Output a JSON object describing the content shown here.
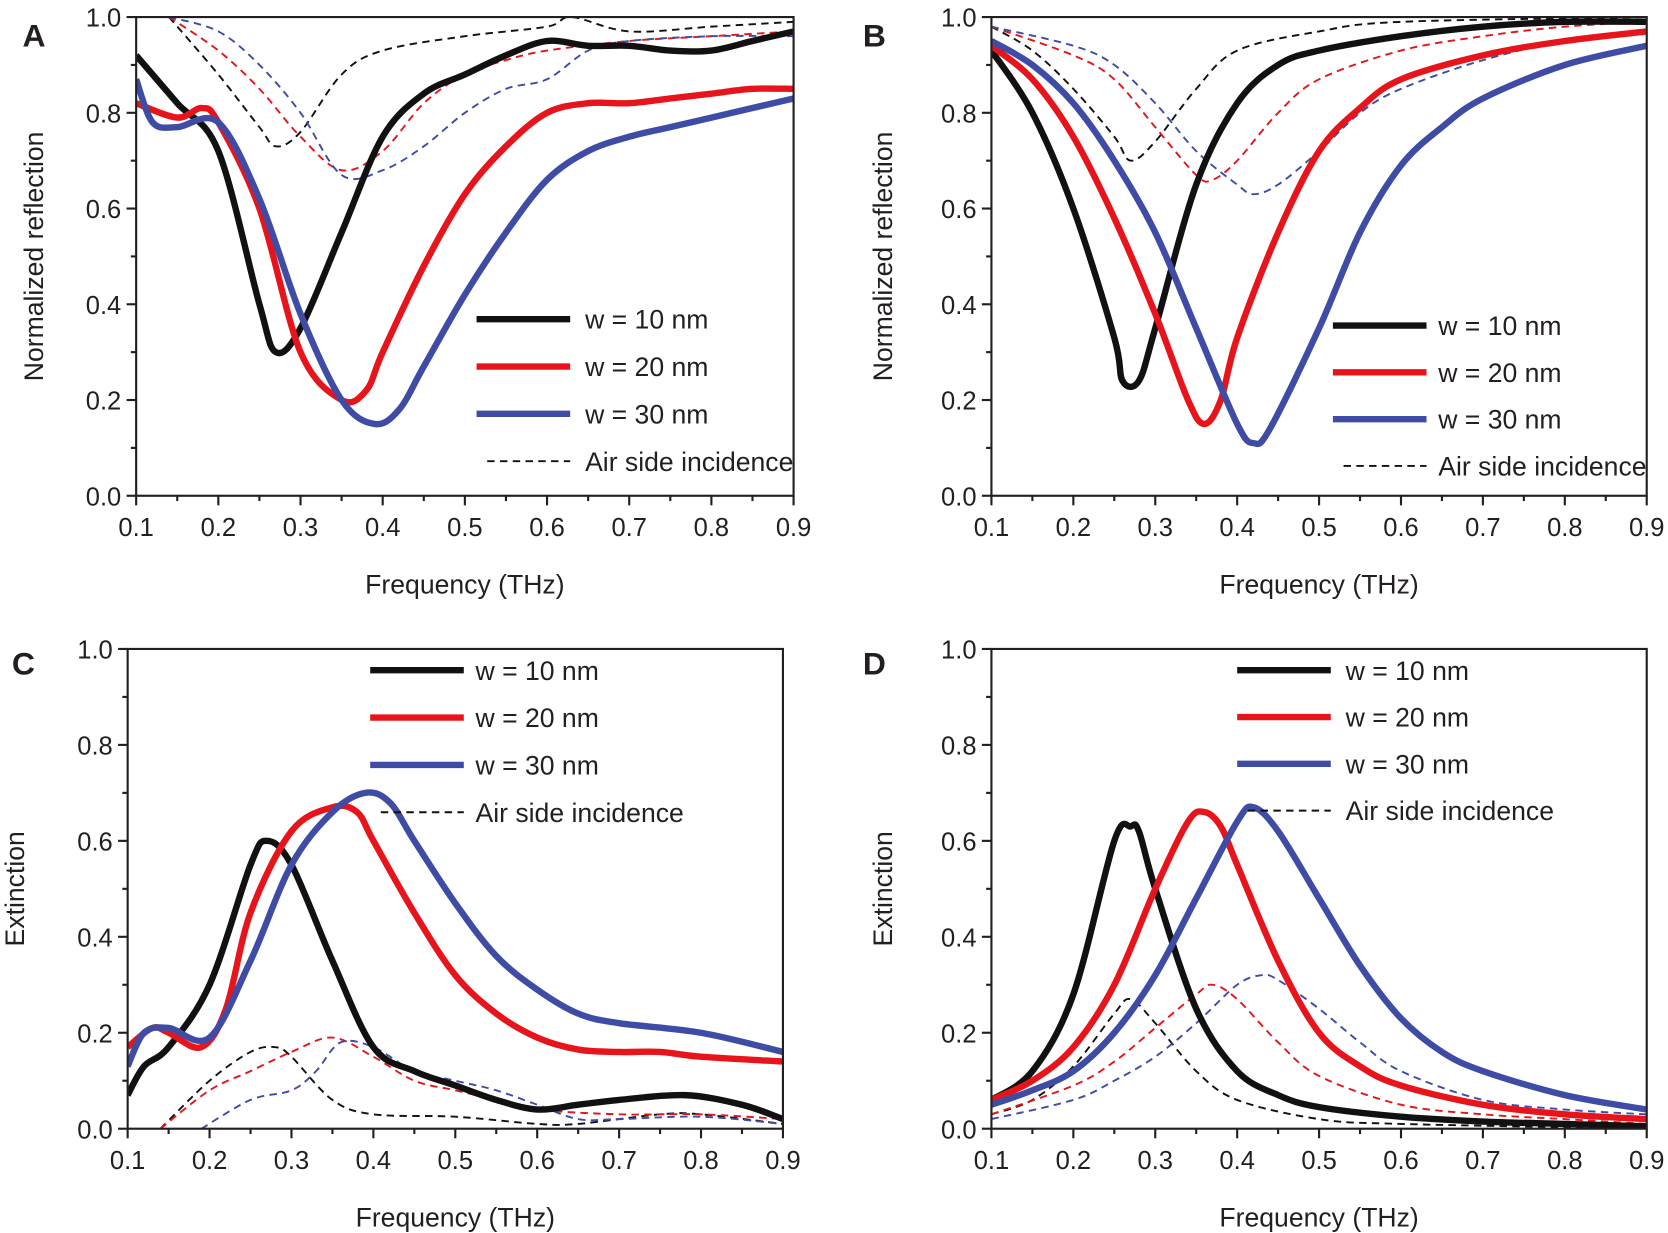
{
  "colors": {
    "w10": "#111111",
    "w20": "#e8141c",
    "w30": "#3f4ca5"
  },
  "chart_data": [
    {
      "panel": "A",
      "type": "line",
      "xlabel": "Frequency (THz)",
      "ylabel": "Normalized reflection",
      "xlim": [
        0.1,
        0.9
      ],
      "ylim": [
        0.0,
        1.0
      ],
      "xticks": [
        "0.1",
        "0.2",
        "0.3",
        "0.4",
        "0.5",
        "0.6",
        "0.7",
        "0.8",
        "0.9"
      ],
      "yticks": [
        "0.0",
        "0.2",
        "0.4",
        "0.6",
        "0.8",
        "1.0"
      ],
      "legend": [
        "w = 10 nm",
        "w = 20 nm",
        "w = 30 nm",
        "Air side incidence"
      ],
      "legend_position": "bottom-right",
      "series": [
        {
          "name": "w = 10 nm",
          "style": "solid",
          "color": "#111111",
          "x": [
            0.1,
            0.15,
            0.2,
            0.25,
            0.27,
            0.3,
            0.35,
            0.4,
            0.45,
            0.5,
            0.55,
            0.6,
            0.65,
            0.7,
            0.75,
            0.8,
            0.85,
            0.9
          ],
          "y": [
            0.92,
            0.82,
            0.72,
            0.4,
            0.3,
            0.35,
            0.55,
            0.75,
            0.84,
            0.88,
            0.92,
            0.95,
            0.94,
            0.94,
            0.93,
            0.93,
            0.95,
            0.97
          ]
        },
        {
          "name": "w = 20 nm",
          "style": "solid",
          "color": "#e8141c",
          "x": [
            0.1,
            0.15,
            0.18,
            0.2,
            0.25,
            0.3,
            0.35,
            0.38,
            0.4,
            0.45,
            0.5,
            0.55,
            0.6,
            0.65,
            0.7,
            0.75,
            0.8,
            0.85,
            0.9
          ],
          "y": [
            0.82,
            0.79,
            0.81,
            0.78,
            0.6,
            0.3,
            0.2,
            0.22,
            0.3,
            0.48,
            0.63,
            0.73,
            0.8,
            0.82,
            0.82,
            0.83,
            0.84,
            0.85,
            0.85
          ]
        },
        {
          "name": "w = 30 nm",
          "style": "solid",
          "color": "#3f4ca5",
          "x": [
            0.1,
            0.12,
            0.15,
            0.2,
            0.25,
            0.3,
            0.35,
            0.39,
            0.42,
            0.45,
            0.5,
            0.55,
            0.6,
            0.65,
            0.7,
            0.75,
            0.8,
            0.85,
            0.9
          ],
          "y": [
            0.87,
            0.78,
            0.77,
            0.78,
            0.62,
            0.38,
            0.2,
            0.15,
            0.18,
            0.27,
            0.42,
            0.55,
            0.66,
            0.72,
            0.75,
            0.77,
            0.79,
            0.81,
            0.83
          ]
        },
        {
          "name": "w = 10 nm (air side)",
          "style": "dashed",
          "color": "#111111",
          "x": [
            0.14,
            0.2,
            0.25,
            0.27,
            0.3,
            0.35,
            0.4,
            0.5,
            0.6,
            0.63,
            0.7,
            0.8,
            0.9
          ],
          "y": [
            1.0,
            0.88,
            0.77,
            0.73,
            0.76,
            0.88,
            0.93,
            0.96,
            0.98,
            1.0,
            0.97,
            0.98,
            0.99
          ]
        },
        {
          "name": "w = 20 nm (air side)",
          "style": "dashed",
          "color": "#e8141c",
          "x": [
            0.14,
            0.2,
            0.25,
            0.3,
            0.35,
            0.4,
            0.45,
            0.5,
            0.55,
            0.6,
            0.7,
            0.8,
            0.9
          ],
          "y": [
            1.0,
            0.93,
            0.85,
            0.75,
            0.68,
            0.72,
            0.82,
            0.88,
            0.91,
            0.93,
            0.95,
            0.96,
            0.97
          ]
        },
        {
          "name": "w = 30 nm (air side)",
          "style": "dashed",
          "color": "#3f4ca5",
          "x": [
            0.14,
            0.2,
            0.25,
            0.3,
            0.35,
            0.4,
            0.45,
            0.5,
            0.55,
            0.6,
            0.65,
            0.7,
            0.8,
            0.9
          ],
          "y": [
            1.0,
            0.97,
            0.9,
            0.8,
            0.67,
            0.68,
            0.73,
            0.8,
            0.85,
            0.87,
            0.93,
            0.95,
            0.96,
            0.96
          ]
        }
      ]
    },
    {
      "panel": "B",
      "type": "line",
      "xlabel": "Frequency (THz)",
      "ylabel": "Normalized reflection",
      "xlim": [
        0.1,
        0.9
      ],
      "ylim": [
        0.0,
        1.0
      ],
      "xticks": [
        "0.1",
        "0.2",
        "0.3",
        "0.4",
        "0.5",
        "0.6",
        "0.7",
        "0.8",
        "0.9"
      ],
      "yticks": [
        "0.0",
        "0.2",
        "0.4",
        "0.6",
        "0.8",
        "1.0"
      ],
      "legend": [
        "w = 10 nm",
        "w = 20 nm",
        "w = 30 nm",
        "Air side incidence"
      ],
      "legend_position": "bottom-right",
      "series": [
        {
          "name": "w = 10 nm",
          "style": "solid",
          "color": "#111111",
          "x": [
            0.1,
            0.15,
            0.2,
            0.25,
            0.26,
            0.28,
            0.3,
            0.35,
            0.4,
            0.45,
            0.5,
            0.6,
            0.7,
            0.8,
            0.9
          ],
          "y": [
            0.93,
            0.8,
            0.6,
            0.33,
            0.24,
            0.24,
            0.35,
            0.65,
            0.82,
            0.9,
            0.93,
            0.96,
            0.98,
            0.99,
            0.99
          ]
        },
        {
          "name": "w = 20 nm",
          "style": "solid",
          "color": "#e8141c",
          "x": [
            0.1,
            0.15,
            0.2,
            0.25,
            0.3,
            0.34,
            0.36,
            0.38,
            0.4,
            0.45,
            0.5,
            0.55,
            0.6,
            0.7,
            0.8,
            0.9
          ],
          "y": [
            0.94,
            0.87,
            0.75,
            0.58,
            0.38,
            0.2,
            0.15,
            0.2,
            0.33,
            0.55,
            0.72,
            0.81,
            0.87,
            0.92,
            0.95,
            0.97
          ]
        },
        {
          "name": "w = 30 nm",
          "style": "solid",
          "color": "#3f4ca5",
          "x": [
            0.1,
            0.15,
            0.2,
            0.25,
            0.3,
            0.35,
            0.4,
            0.42,
            0.44,
            0.5,
            0.55,
            0.6,
            0.65,
            0.7,
            0.8,
            0.9
          ],
          "y": [
            0.95,
            0.9,
            0.82,
            0.7,
            0.55,
            0.35,
            0.15,
            0.11,
            0.14,
            0.35,
            0.55,
            0.69,
            0.77,
            0.83,
            0.9,
            0.94
          ]
        },
        {
          "name": "w = 10 nm (air side)",
          "style": "dashed",
          "color": "#111111",
          "x": [
            0.1,
            0.15,
            0.2,
            0.25,
            0.27,
            0.3,
            0.35,
            0.4,
            0.5,
            0.6,
            0.9
          ],
          "y": [
            0.98,
            0.93,
            0.85,
            0.75,
            0.7,
            0.74,
            0.85,
            0.93,
            0.97,
            0.99,
            1.0
          ]
        },
        {
          "name": "w = 20 nm (air side)",
          "style": "dashed",
          "color": "#e8141c",
          "x": [
            0.1,
            0.2,
            0.25,
            0.3,
            0.35,
            0.37,
            0.4,
            0.45,
            0.5,
            0.6,
            0.7,
            0.8,
            0.9
          ],
          "y": [
            0.98,
            0.92,
            0.87,
            0.77,
            0.67,
            0.66,
            0.7,
            0.8,
            0.87,
            0.93,
            0.96,
            0.98,
            0.99
          ]
        },
        {
          "name": "w = 30 nm (air side)",
          "style": "dashed",
          "color": "#3f4ca5",
          "x": [
            0.1,
            0.2,
            0.25,
            0.3,
            0.35,
            0.4,
            0.42,
            0.45,
            0.5,
            0.55,
            0.6,
            0.7,
            0.8,
            0.9
          ],
          "y": [
            0.98,
            0.94,
            0.9,
            0.82,
            0.72,
            0.65,
            0.63,
            0.65,
            0.72,
            0.8,
            0.85,
            0.91,
            0.95,
            0.97
          ]
        }
      ]
    },
    {
      "panel": "C",
      "type": "line",
      "xlabel": "Frequency (THz)",
      "ylabel": "Extinction",
      "xlim": [
        0.1,
        0.9
      ],
      "ylim": [
        0.0,
        1.0
      ],
      "xticks": [
        "0.1",
        "0.2",
        "0.3",
        "0.4",
        "0.5",
        "0.6",
        "0.7",
        "0.8",
        "0.9"
      ],
      "yticks": [
        "0.0",
        "0.2",
        "0.4",
        "0.6",
        "0.8",
        "1.0"
      ],
      "legend": [
        "w = 10 nm",
        "w = 20 nm",
        "w = 30 nm",
        "Air side incidence"
      ],
      "legend_position": "top-right",
      "series": [
        {
          "name": "w = 10 nm",
          "style": "solid",
          "color": "#111111",
          "x": [
            0.1,
            0.12,
            0.15,
            0.2,
            0.25,
            0.27,
            0.3,
            0.35,
            0.4,
            0.45,
            0.5,
            0.55,
            0.6,
            0.65,
            0.7,
            0.78,
            0.85,
            0.9
          ],
          "y": [
            0.07,
            0.13,
            0.17,
            0.3,
            0.55,
            0.6,
            0.55,
            0.35,
            0.17,
            0.12,
            0.09,
            0.06,
            0.04,
            0.05,
            0.06,
            0.07,
            0.05,
            0.02
          ]
        },
        {
          "name": "w = 20 nm",
          "style": "solid",
          "color": "#e8141c",
          "x": [
            0.1,
            0.13,
            0.15,
            0.19,
            0.22,
            0.25,
            0.3,
            0.35,
            0.38,
            0.4,
            0.45,
            0.5,
            0.55,
            0.6,
            0.65,
            0.7,
            0.75,
            0.8,
            0.9
          ],
          "y": [
            0.17,
            0.21,
            0.2,
            0.17,
            0.25,
            0.45,
            0.62,
            0.67,
            0.66,
            0.6,
            0.45,
            0.32,
            0.24,
            0.19,
            0.165,
            0.16,
            0.16,
            0.15,
            0.14
          ]
        },
        {
          "name": "w = 30 nm",
          "style": "solid",
          "color": "#3f4ca5",
          "x": [
            0.1,
            0.12,
            0.15,
            0.2,
            0.25,
            0.3,
            0.35,
            0.39,
            0.42,
            0.45,
            0.5,
            0.55,
            0.6,
            0.65,
            0.7,
            0.8,
            0.9
          ],
          "y": [
            0.13,
            0.2,
            0.21,
            0.19,
            0.35,
            0.55,
            0.66,
            0.7,
            0.68,
            0.6,
            0.47,
            0.36,
            0.29,
            0.24,
            0.22,
            0.2,
            0.16
          ]
        },
        {
          "name": "w = 10 nm (air side)",
          "style": "dashed",
          "color": "#111111",
          "x": [
            0.14,
            0.2,
            0.25,
            0.28,
            0.3,
            0.35,
            0.4,
            0.5,
            0.6,
            0.65,
            0.75,
            0.8,
            0.9
          ],
          "y": [
            0.0,
            0.1,
            0.16,
            0.17,
            0.15,
            0.06,
            0.03,
            0.025,
            0.01,
            0.01,
            0.03,
            0.03,
            0.01
          ]
        },
        {
          "name": "w = 20 nm (air side)",
          "style": "dashed",
          "color": "#e8141c",
          "x": [
            0.14,
            0.2,
            0.25,
            0.3,
            0.35,
            0.4,
            0.45,
            0.5,
            0.55,
            0.6,
            0.7,
            0.8,
            0.9
          ],
          "y": [
            0.0,
            0.08,
            0.12,
            0.16,
            0.19,
            0.15,
            0.1,
            0.08,
            0.06,
            0.04,
            0.03,
            0.03,
            0.02
          ]
        },
        {
          "name": "w = 30 nm (air side)",
          "style": "dashed",
          "color": "#3f4ca5",
          "x": [
            0.19,
            0.25,
            0.3,
            0.33,
            0.36,
            0.4,
            0.45,
            0.5,
            0.55,
            0.6,
            0.65,
            0.7,
            0.8,
            0.9
          ],
          "y": [
            0.0,
            0.06,
            0.08,
            0.12,
            0.18,
            0.17,
            0.12,
            0.1,
            0.08,
            0.05,
            0.02,
            0.02,
            0.025,
            0.01
          ]
        }
      ]
    },
    {
      "panel": "D",
      "type": "line",
      "xlabel": "Frequency (THz)",
      "ylabel": "Extinction",
      "xlim": [
        0.1,
        0.9
      ],
      "ylim": [
        0.0,
        1.0
      ],
      "xticks": [
        "0.1",
        "0.2",
        "0.3",
        "0.4",
        "0.5",
        "0.6",
        "0.7",
        "0.8",
        "0.9"
      ],
      "yticks": [
        "0.0",
        "0.2",
        "0.4",
        "0.6",
        "0.8",
        "1.0"
      ],
      "legend": [
        "w = 10 nm",
        "w = 20 nm",
        "w = 30 nm",
        "Air side incidence"
      ],
      "legend_position": "top-right",
      "series": [
        {
          "name": "w = 10 nm",
          "style": "solid",
          "color": "#111111",
          "x": [
            0.1,
            0.15,
            0.2,
            0.25,
            0.27,
            0.28,
            0.3,
            0.35,
            0.4,
            0.45,
            0.5,
            0.6,
            0.7,
            0.8,
            0.9
          ],
          "y": [
            0.06,
            0.12,
            0.28,
            0.6,
            0.63,
            0.62,
            0.5,
            0.25,
            0.12,
            0.07,
            0.045,
            0.025,
            0.015,
            0.01,
            0.005
          ]
        },
        {
          "name": "w = 20 nm",
          "style": "solid",
          "color": "#e8141c",
          "x": [
            0.1,
            0.15,
            0.2,
            0.25,
            0.3,
            0.34,
            0.36,
            0.38,
            0.4,
            0.45,
            0.5,
            0.55,
            0.6,
            0.7,
            0.8,
            0.9
          ],
          "y": [
            0.06,
            0.1,
            0.17,
            0.3,
            0.5,
            0.64,
            0.66,
            0.63,
            0.55,
            0.35,
            0.2,
            0.13,
            0.09,
            0.05,
            0.03,
            0.02
          ]
        },
        {
          "name": "w = 30 nm",
          "style": "solid",
          "color": "#3f4ca5",
          "x": [
            0.1,
            0.15,
            0.2,
            0.25,
            0.3,
            0.35,
            0.4,
            0.42,
            0.45,
            0.5,
            0.55,
            0.6,
            0.65,
            0.7,
            0.8,
            0.9
          ],
          "y": [
            0.05,
            0.08,
            0.12,
            0.2,
            0.32,
            0.48,
            0.64,
            0.67,
            0.62,
            0.48,
            0.34,
            0.23,
            0.16,
            0.12,
            0.07,
            0.04
          ]
        },
        {
          "name": "w = 10 nm (air side)",
          "style": "dashed",
          "color": "#111111",
          "x": [
            0.1,
            0.15,
            0.2,
            0.25,
            0.27,
            0.3,
            0.35,
            0.4,
            0.5,
            0.6,
            0.9
          ],
          "y": [
            0.03,
            0.06,
            0.13,
            0.24,
            0.27,
            0.22,
            0.12,
            0.06,
            0.02,
            0.01,
            0.0
          ]
        },
        {
          "name": "w = 20 nm (air side)",
          "style": "dashed",
          "color": "#e8141c",
          "x": [
            0.1,
            0.2,
            0.25,
            0.3,
            0.35,
            0.37,
            0.4,
            0.45,
            0.5,
            0.6,
            0.7,
            0.8,
            0.9
          ],
          "y": [
            0.03,
            0.09,
            0.14,
            0.21,
            0.28,
            0.3,
            0.27,
            0.18,
            0.11,
            0.05,
            0.03,
            0.02,
            0.01
          ]
        },
        {
          "name": "w = 30 nm (air side)",
          "style": "dashed",
          "color": "#3f4ca5",
          "x": [
            0.1,
            0.2,
            0.25,
            0.3,
            0.35,
            0.4,
            0.43,
            0.45,
            0.5,
            0.55,
            0.6,
            0.7,
            0.8,
            0.9
          ],
          "y": [
            0.02,
            0.06,
            0.1,
            0.15,
            0.22,
            0.3,
            0.32,
            0.31,
            0.25,
            0.18,
            0.12,
            0.06,
            0.04,
            0.03
          ]
        }
      ]
    }
  ]
}
